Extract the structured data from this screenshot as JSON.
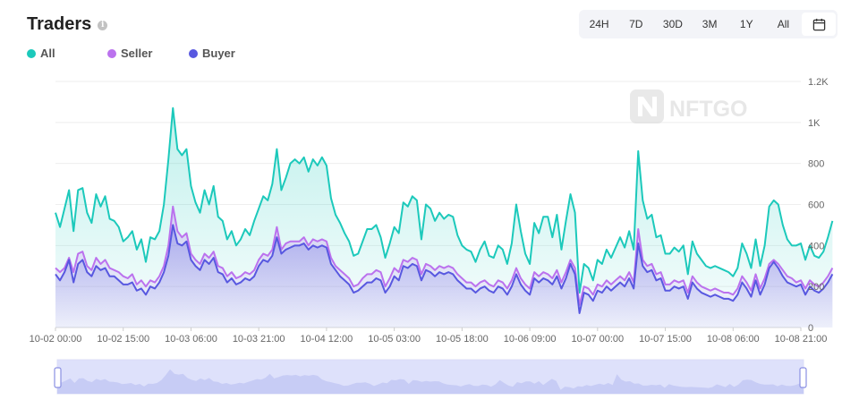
{
  "header": {
    "title": "Traders",
    "info_icon": "info-icon"
  },
  "legend": [
    {
      "label": "All",
      "color": "#1cc9bb"
    },
    {
      "label": "Seller",
      "color": "#bb72ee"
    },
    {
      "label": "Buyer",
      "color": "#5858e0"
    }
  ],
  "range_buttons": [
    "24H",
    "7D",
    "30D",
    "3M",
    "1Y",
    "All"
  ],
  "calendar_icon": "calendar-icon",
  "watermark": "NFTGO",
  "chart_data": {
    "type": "area",
    "x_ticks": [
      "10-02 00:00",
      "10-02 15:00",
      "10-03 06:00",
      "10-03 21:00",
      "10-04 12:00",
      "10-05 03:00",
      "10-05 18:00",
      "10-06 09:00",
      "10-07 00:00",
      "10-07 15:00",
      "10-08 06:00",
      "10-08 21:00"
    ],
    "y_ticks": [
      "0",
      "200",
      "400",
      "600",
      "800",
      "1K",
      "1.2K"
    ],
    "ylim": [
      0,
      1200
    ],
    "grid": true,
    "legend_position": "top-left",
    "x_range_hours": [
      0,
      165
    ],
    "sample_interval_hours": 1,
    "series": [
      {
        "name": "All",
        "color": "#1cc9bb",
        "values": [
          560,
          490,
          580,
          670,
          470,
          670,
          680,
          560,
          510,
          650,
          590,
          640,
          530,
          520,
          490,
          420,
          440,
          470,
          380,
          430,
          320,
          440,
          430,
          470,
          600,
          820,
          1070,
          870,
          840,
          870,
          690,
          610,
          560,
          670,
          600,
          690,
          540,
          520,
          430,
          470,
          400,
          430,
          480,
          450,
          520,
          580,
          640,
          620,
          700,
          870,
          670,
          730,
          800,
          820,
          800,
          830,
          760,
          820,
          790,
          830,
          790,
          630,
          550,
          510,
          460,
          420,
          350,
          360,
          420,
          480,
          480,
          500,
          440,
          340,
          410,
          490,
          460,
          610,
          590,
          640,
          620,
          430,
          600,
          580,
          520,
          560,
          530,
          550,
          540,
          450,
          400,
          380,
          370,
          320,
          380,
          420,
          350,
          340,
          400,
          380,
          310,
          410,
          600,
          470,
          360,
          310,
          510,
          460,
          540,
          540,
          440,
          550,
          380,
          520,
          650,
          560,
          170,
          310,
          290,
          230,
          330,
          310,
          380,
          340,
          390,
          440,
          390,
          470,
          380,
          860,
          620,
          530,
          550,
          440,
          450,
          360,
          360,
          390,
          370,
          400,
          260,
          420,
          360,
          330,
          300,
          290,
          300,
          290,
          280,
          270,
          250,
          290,
          410,
          360,
          290,
          430,
          300,
          400,
          590,
          620,
          600,
          500,
          430,
          400,
          400,
          410,
          330,
          400,
          350,
          340,
          370,
          440,
          520
        ]
      },
      {
        "name": "Seller",
        "color": "#bb72ee",
        "values": [
          290,
          270,
          290,
          340,
          270,
          360,
          370,
          300,
          280,
          340,
          310,
          330,
          290,
          280,
          270,
          250,
          240,
          260,
          210,
          230,
          200,
          230,
          220,
          250,
          300,
          400,
          590,
          470,
          440,
          460,
          360,
          330,
          310,
          360,
          340,
          370,
          300,
          290,
          250,
          270,
          240,
          250,
          270,
          260,
          280,
          330,
          360,
          350,
          380,
          490,
          380,
          410,
          420,
          420,
          420,
          440,
          400,
          430,
          420,
          430,
          420,
          340,
          300,
          280,
          260,
          240,
          200,
          210,
          240,
          260,
          260,
          280,
          270,
          200,
          240,
          290,
          270,
          330,
          320,
          340,
          330,
          260,
          310,
          300,
          280,
          300,
          290,
          300,
          290,
          260,
          240,
          220,
          220,
          200,
          220,
          230,
          210,
          200,
          230,
          220,
          190,
          230,
          290,
          240,
          210,
          190,
          270,
          250,
          270,
          260,
          240,
          280,
          220,
          270,
          330,
          290,
          110,
          200,
          190,
          160,
          210,
          200,
          230,
          210,
          230,
          250,
          230,
          270,
          220,
          480,
          330,
          300,
          310,
          260,
          270,
          210,
          210,
          230,
          220,
          230,
          170,
          250,
          220,
          200,
          190,
          180,
          190,
          180,
          170,
          170,
          160,
          190,
          250,
          220,
          180,
          260,
          190,
          240,
          310,
          330,
          310,
          280,
          250,
          240,
          220,
          230,
          190,
          230,
          210,
          200,
          220,
          250,
          290
        ]
      },
      {
        "name": "Buyer",
        "color": "#5858e0",
        "values": [
          260,
          230,
          270,
          330,
          220,
          310,
          330,
          270,
          250,
          300,
          280,
          290,
          250,
          250,
          230,
          210,
          210,
          220,
          180,
          190,
          160,
          200,
          190,
          220,
          270,
          350,
          500,
          410,
          400,
          420,
          330,
          300,
          280,
          330,
          310,
          340,
          270,
          260,
          220,
          240,
          210,
          220,
          240,
          230,
          250,
          300,
          330,
          320,
          350,
          440,
          360,
          380,
          390,
          400,
          400,
          410,
          380,
          400,
          390,
          400,
          390,
          310,
          280,
          250,
          230,
          210,
          170,
          180,
          200,
          220,
          220,
          240,
          230,
          170,
          200,
          250,
          230,
          300,
          290,
          310,
          300,
          230,
          280,
          270,
          250,
          270,
          260,
          270,
          260,
          230,
          210,
          190,
          190,
          170,
          190,
          200,
          180,
          170,
          200,
          190,
          160,
          200,
          260,
          210,
          180,
          160,
          240,
          220,
          240,
          230,
          210,
          250,
          190,
          240,
          310,
          260,
          70,
          170,
          160,
          130,
          180,
          170,
          200,
          180,
          200,
          220,
          200,
          240,
          190,
          410,
          300,
          270,
          280,
          230,
          240,
          180,
          180,
          200,
          190,
          200,
          140,
          220,
          190,
          170,
          160,
          150,
          160,
          150,
          140,
          140,
          130,
          160,
          220,
          190,
          150,
          230,
          160,
          210,
          290,
          320,
          290,
          250,
          220,
          210,
          200,
          210,
          160,
          200,
          180,
          170,
          190,
          220,
          260
        ]
      }
    ]
  }
}
